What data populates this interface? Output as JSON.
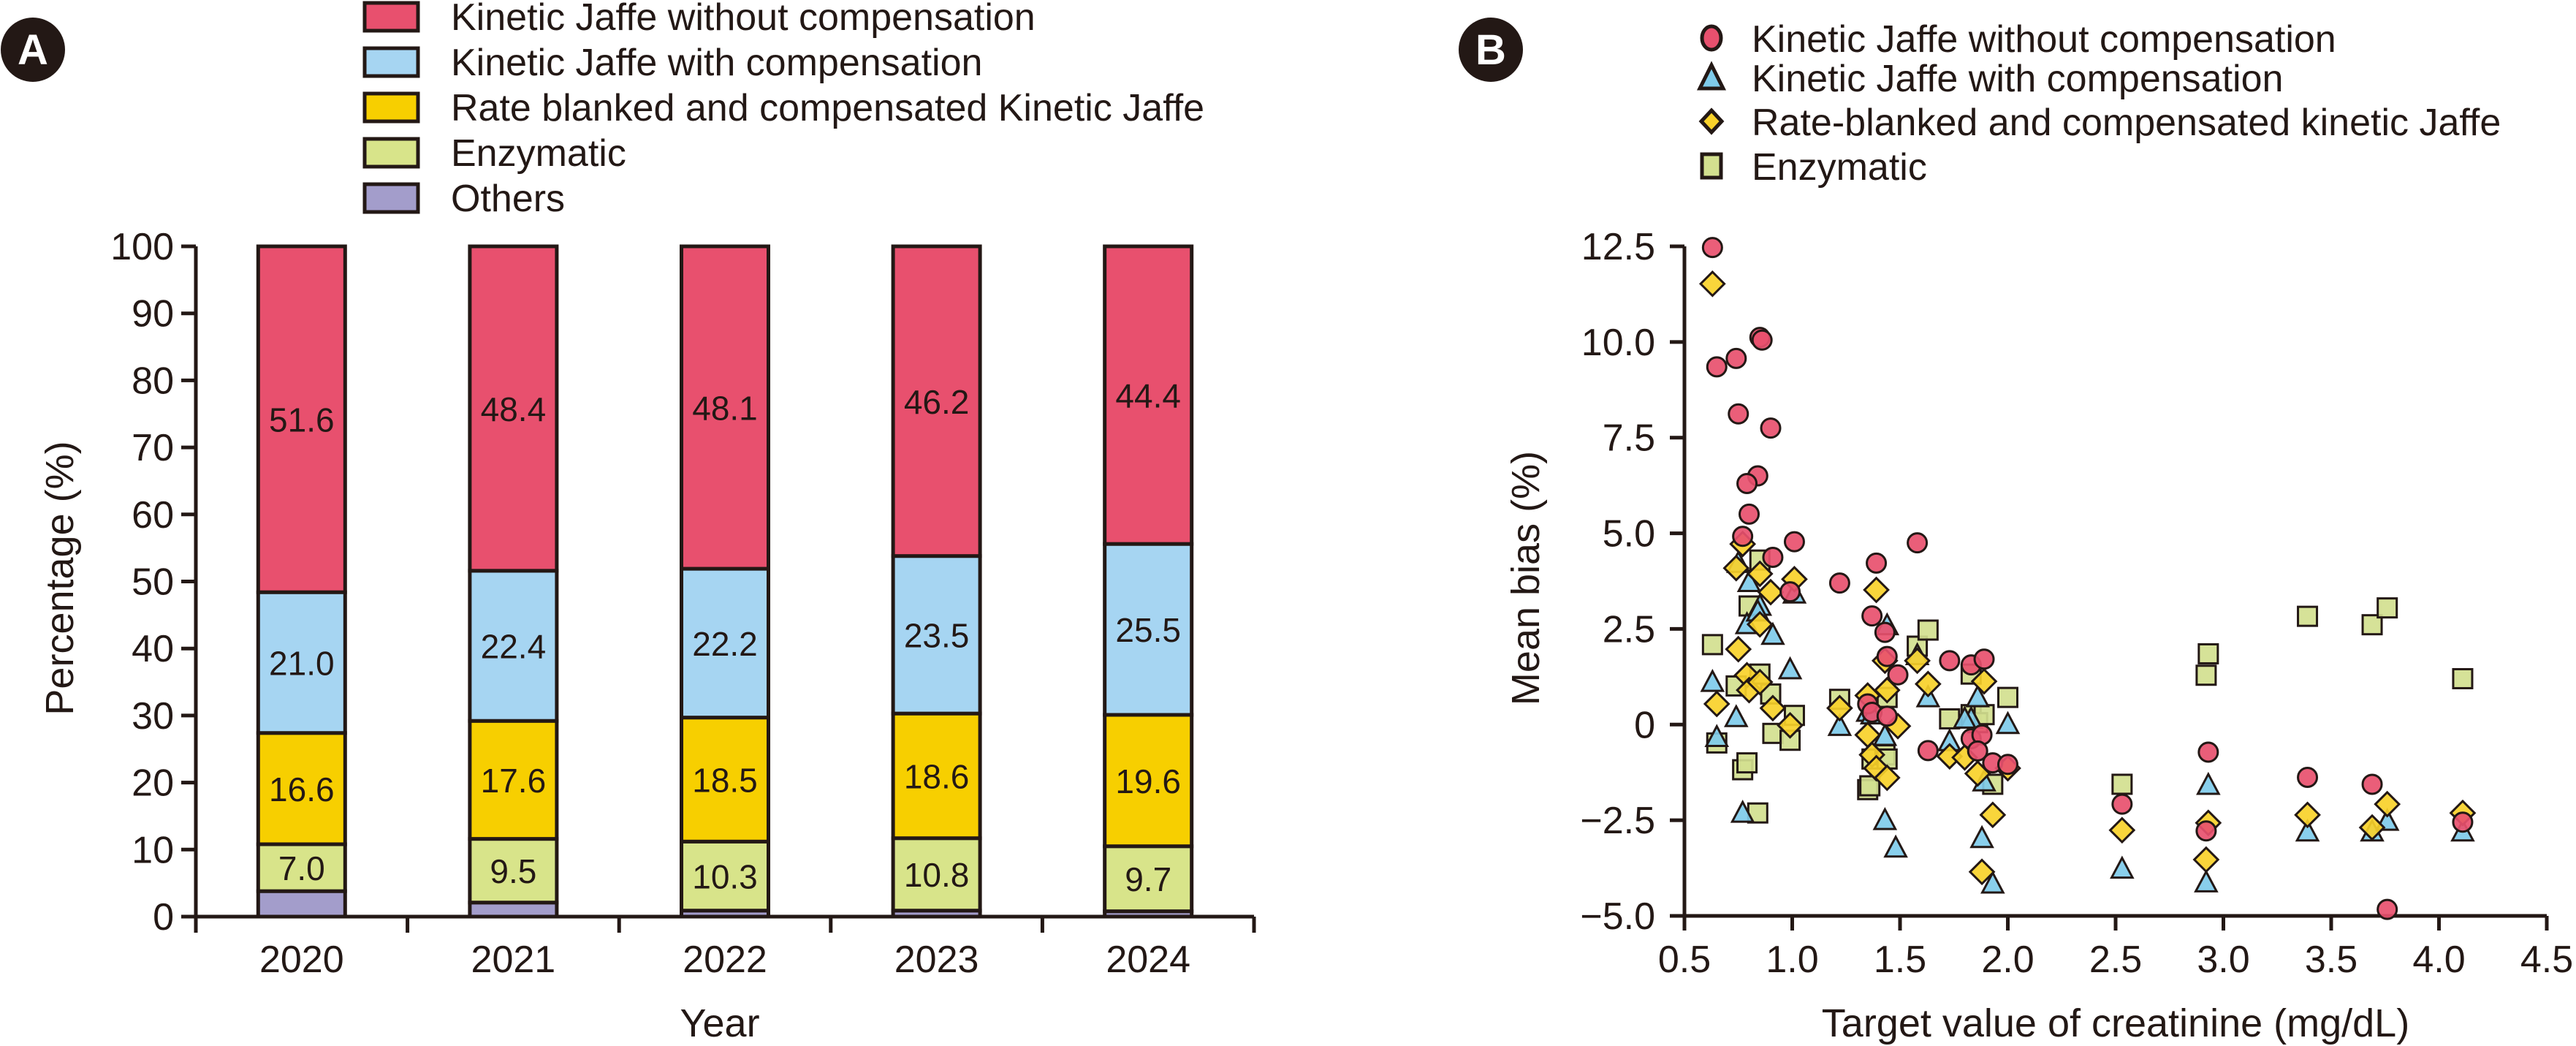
{
  "panels": {
    "a": {
      "badge": "A",
      "legend": [
        {
          "label": "Kinetic Jaffe without compensation",
          "color": "#E8506E"
        },
        {
          "label": "Kinetic Jaffe with compensation",
          "color": "#A6D5F2"
        },
        {
          "label": "Rate blanked and compensated Kinetic Jaffe",
          "color": "#F7CF00"
        },
        {
          "label": "Enzymatic",
          "color": "#D8E48A"
        },
        {
          "label": "Others",
          "color": "#A39DCB"
        }
      ]
    },
    "b": {
      "badge": "B",
      "legend": [
        {
          "label": "Kinetic Jaffe without compensation",
          "marker": "circle",
          "color": "#E8506E"
        },
        {
          "label": "Kinetic Jaffe with compensation",
          "marker": "triangle",
          "color": "#7FCBEA"
        },
        {
          "label": "Rate-blanked and compensated kinetic Jaffe",
          "marker": "diamond",
          "color": "#F9D12A"
        },
        {
          "label": "Enzymatic",
          "marker": "square",
          "color": "#D3E08F"
        }
      ]
    }
  },
  "chart_data": [
    {
      "type": "bar",
      "stacked": true,
      "title": "",
      "xlabel": "Year",
      "ylabel": "Percentage (%)",
      "ylim": [
        0,
        100
      ],
      "yticks": [
        0,
        10,
        20,
        30,
        40,
        50,
        60,
        70,
        80,
        90,
        100
      ],
      "categories": [
        "2020",
        "2021",
        "2022",
        "2023",
        "2024"
      ],
      "legend_position": "top",
      "series": [
        {
          "name": "Others",
          "color": "#A39DCB",
          "values": [
            3.8,
            2.1,
            0.9,
            0.9,
            0.8
          ],
          "labels": [
            "",
            "",
            "",
            "",
            ""
          ]
        },
        {
          "name": "Enzymatic",
          "color": "#D8E48A",
          "values": [
            7.0,
            9.5,
            10.3,
            10.8,
            9.7
          ],
          "labels": [
            "7.0",
            "9.5",
            "10.3",
            "10.8",
            "9.7"
          ]
        },
        {
          "name": "Rate blanked and compensated Kinetic Jaffe",
          "color": "#F7CF00",
          "values": [
            16.6,
            17.6,
            18.5,
            18.6,
            19.6
          ],
          "labels": [
            "16.6",
            "17.6",
            "18.5",
            "18.6",
            "19.6"
          ]
        },
        {
          "name": "Kinetic Jaffe with compensation",
          "color": "#A6D5F2",
          "values": [
            21.0,
            22.4,
            22.2,
            23.5,
            25.5
          ],
          "labels": [
            "21.0",
            "22.4",
            "22.2",
            "23.5",
            "25.5"
          ]
        },
        {
          "name": "Kinetic Jaffe without compensation",
          "color": "#E8506E",
          "values": [
            51.6,
            48.4,
            48.1,
            46.2,
            44.4
          ],
          "labels": [
            "51.6",
            "48.4",
            "48.1",
            "46.2",
            "44.4"
          ]
        }
      ]
    },
    {
      "type": "scatter",
      "title": "",
      "xlabel": "Target value of creatinine (mg/dL)",
      "ylabel": "Mean bias (%)",
      "xlim": [
        0.5,
        4.5
      ],
      "ylim": [
        -5.0,
        12.5
      ],
      "xticks": [
        "0.5",
        "1.0",
        "1.5",
        "2.0",
        "2.5",
        "3.0",
        "3.5",
        "4.0",
        "4.5"
      ],
      "yticks": [
        "-5.0",
        "-2.5",
        "0",
        "2.5",
        "5.0",
        "7.5",
        "10.0",
        "12.5"
      ],
      "legend_position": "top",
      "series": [
        {
          "name": "Enzymatic",
          "marker": "square",
          "color": "#D3E08F",
          "points": [
            [
              0.63,
              2.09
            ],
            [
              0.65,
              -0.48
            ],
            [
              0.74,
              1.01
            ],
            [
              0.77,
              -1.18
            ],
            [
              0.79,
              -1.0
            ],
            [
              0.84,
              -2.31
            ],
            [
              0.8,
              3.1
            ],
            [
              0.85,
              4.3
            ],
            [
              0.85,
              1.32
            ],
            [
              0.9,
              0.8
            ],
            [
              0.91,
              -0.23
            ],
            [
              0.99,
              -0.41
            ],
            [
              1.01,
              0.24
            ],
            [
              1.22,
              0.66
            ],
            [
              1.35,
              -1.7
            ],
            [
              1.36,
              -1.6
            ],
            [
              1.37,
              -0.9
            ],
            [
              1.43,
              -0.79
            ],
            [
              1.44,
              -0.9
            ],
            [
              1.44,
              0.71
            ],
            [
              1.58,
              2.05
            ],
            [
              1.63,
              2.47
            ],
            [
              1.73,
              0.15
            ],
            [
              1.83,
              1.32
            ],
            [
              1.83,
              0.26
            ],
            [
              1.86,
              0.05
            ],
            [
              1.89,
              0.26
            ],
            [
              1.93,
              -1.56
            ],
            [
              2.0,
              0.71
            ],
            [
              2.53,
              -1.56
            ],
            [
              2.92,
              1.29
            ],
            [
              2.93,
              1.85
            ],
            [
              3.39,
              2.83
            ],
            [
              3.69,
              2.61
            ],
            [
              3.76,
              3.05
            ],
            [
              4.11,
              1.2
            ]
          ]
        },
        {
          "name": "Kinetic Jaffe with compensation",
          "marker": "triangle",
          "color": "#7FCBEA",
          "points": [
            [
              0.63,
              1.11
            ],
            [
              0.65,
              -0.33
            ],
            [
              0.74,
              0.19
            ],
            [
              0.75,
              4.22
            ],
            [
              0.8,
              3.72
            ],
            [
              0.79,
              2.62
            ],
            [
              0.85,
              3.1
            ],
            [
              0.84,
              2.95
            ],
            [
              0.91,
              2.34
            ],
            [
              0.77,
              -2.31
            ],
            [
              0.99,
              1.44
            ],
            [
              1.01,
              3.42
            ],
            [
              1.22,
              -0.04
            ],
            [
              1.43,
              -2.5
            ],
            [
              1.48,
              -3.22
            ],
            [
              1.44,
              2.59
            ],
            [
              1.35,
              0.33
            ],
            [
              1.37,
              0.26
            ],
            [
              1.43,
              -0.3
            ],
            [
              1.58,
              1.81
            ],
            [
              1.63,
              0.71
            ],
            [
              1.73,
              -0.44
            ],
            [
              1.83,
              0.15
            ],
            [
              1.8,
              0.15
            ],
            [
              1.86,
              0.71
            ],
            [
              1.89,
              -1.49
            ],
            [
              1.88,
              -2.97
            ],
            [
              1.93,
              -4.16
            ],
            [
              2.0,
              0.01
            ],
            [
              2.53,
              -3.77
            ],
            [
              2.92,
              -4.13
            ],
            [
              2.93,
              -1.58
            ],
            [
              3.39,
              -2.8
            ],
            [
              3.69,
              -2.8
            ],
            [
              3.76,
              -2.52
            ],
            [
              4.11,
              -2.8
            ]
          ]
        },
        {
          "name": "Rate-blanked and compensated kinetic Jaffe",
          "marker": "diamond",
          "color": "#F9D12A",
          "points": [
            [
              0.63,
              11.52
            ],
            [
              0.65,
              0.54
            ],
            [
              0.74,
              4.09
            ],
            [
              0.77,
              4.72
            ],
            [
              0.75,
              1.97
            ],
            [
              0.79,
              1.29
            ],
            [
              0.8,
              0.9
            ],
            [
              0.85,
              1.11
            ],
            [
              0.85,
              3.94
            ],
            [
              0.85,
              2.62
            ],
            [
              0.9,
              3.46
            ],
            [
              0.91,
              0.43
            ],
            [
              0.99,
              -0.02
            ],
            [
              1.01,
              3.8
            ],
            [
              1.22,
              0.43
            ],
            [
              1.39,
              3.52
            ],
            [
              1.35,
              0.76
            ],
            [
              1.35,
              -0.27
            ],
            [
              1.37,
              -0.79
            ],
            [
              1.39,
              -1.14
            ],
            [
              1.43,
              1.67
            ],
            [
              1.44,
              0.9
            ],
            [
              1.44,
              -1.39
            ],
            [
              1.49,
              -0.04
            ],
            [
              1.58,
              1.67
            ],
            [
              1.63,
              1.06
            ],
            [
              1.73,
              -0.83
            ],
            [
              1.8,
              -0.86
            ],
            [
              1.86,
              -1.28
            ],
            [
              1.89,
              1.13
            ],
            [
              1.88,
              -3.85
            ],
            [
              1.93,
              -2.36
            ],
            [
              2.0,
              -1.14
            ],
            [
              2.53,
              -2.76
            ],
            [
              2.93,
              -2.57
            ],
            [
              2.92,
              -3.53
            ],
            [
              3.39,
              -2.36
            ],
            [
              3.69,
              -2.69
            ],
            [
              3.76,
              -2.08
            ],
            [
              4.11,
              -2.31
            ]
          ]
        },
        {
          "name": "Kinetic Jaffe without compensation",
          "marker": "circle",
          "color": "#E8506E",
          "points": [
            [
              0.63,
              12.47
            ],
            [
              0.65,
              9.35
            ],
            [
              0.74,
              9.57
            ],
            [
              0.85,
              10.12
            ],
            [
              0.86,
              10.05
            ],
            [
              0.75,
              8.12
            ],
            [
              0.9,
              7.75
            ],
            [
              0.84,
              6.5
            ],
            [
              0.79,
              6.3
            ],
            [
              0.8,
              5.5
            ],
            [
              0.77,
              4.92
            ],
            [
              0.91,
              4.37
            ],
            [
              1.01,
              4.78
            ],
            [
              0.99,
              3.47
            ],
            [
              1.22,
              3.7
            ],
            [
              1.39,
              4.22
            ],
            [
              1.58,
              4.75
            ],
            [
              1.37,
              2.84
            ],
            [
              1.43,
              2.41
            ],
            [
              1.44,
              1.78
            ],
            [
              1.49,
              1.3
            ],
            [
              1.35,
              0.54
            ],
            [
              1.37,
              0.32
            ],
            [
              1.44,
              0.22
            ],
            [
              1.73,
              1.67
            ],
            [
              1.83,
              1.56
            ],
            [
              1.89,
              1.71
            ],
            [
              1.63,
              -0.68
            ],
            [
              1.83,
              -0.37
            ],
            [
              1.88,
              -0.27
            ],
            [
              1.86,
              -0.69
            ],
            [
              1.93,
              -1.0
            ],
            [
              2.0,
              -1.04
            ],
            [
              2.53,
              -2.08
            ],
            [
              2.92,
              -2.78
            ],
            [
              2.93,
              -0.72
            ],
            [
              3.39,
              -1.38
            ],
            [
              3.69,
              -1.56
            ],
            [
              3.76,
              -4.83
            ],
            [
              4.11,
              -2.55
            ]
          ]
        }
      ]
    }
  ]
}
